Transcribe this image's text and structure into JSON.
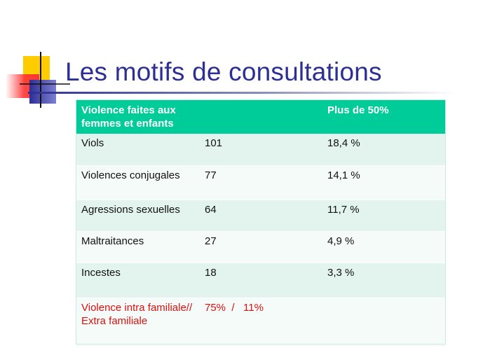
{
  "slide": {
    "title": "Les motifs de consultations"
  },
  "table": {
    "header": {
      "col1": "Violence faites aux femmes et enfants",
      "col2": "",
      "col3": "Plus de 50%"
    },
    "rows": [
      {
        "label": "Viols",
        "count": "101",
        "percent": "18,4 %"
      },
      {
        "label": "Violences conjugales",
        "count": "77",
        "percent": "14,1 %"
      },
      {
        "label": "Agressions sexuelles",
        "count": "64",
        "percent": "11,7 %"
      },
      {
        "label": "Maltraitances",
        "count": "27",
        "percent": "4,9 %"
      },
      {
        "label": "Incestes",
        "count": "18",
        "percent": "3,3 %"
      }
    ],
    "footer": {
      "label": "Violence intra familiale// Extra familiale",
      "value": "75%  /   11%",
      "extra": ""
    }
  },
  "colors": {
    "title": "#2e2f95",
    "header_bg": "#00cc99",
    "row_alt_bg": "#e3f4ee",
    "row_plain_bg": "#f5fbf8",
    "footer_text": "#dd1111",
    "deco_yellow": "#ffcc00",
    "deco_red": "#ff3333",
    "deco_blue": "#2e2f95"
  }
}
